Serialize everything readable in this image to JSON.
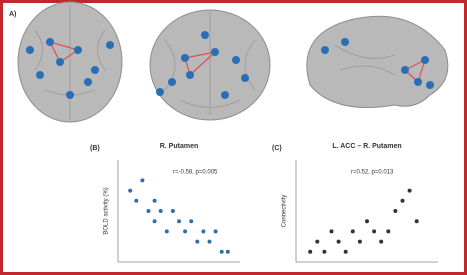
{
  "panel_label": "A)",
  "chart_data": [
    {
      "type": "scatter",
      "panel": "(B)",
      "title": "R. Putamen",
      "annotation": "r=-0.58, p=0.005",
      "y_label": "BOLD activity (%)",
      "x": [
        1,
        1.5,
        2,
        2.5,
        3,
        3,
        3.5,
        4,
        4.5,
        5,
        5.5,
        6,
        6.5,
        7,
        7.5,
        8,
        8.5,
        9
      ],
      "values": [
        7,
        6,
        8,
        5,
        6,
        4,
        5,
        3,
        5,
        4,
        3,
        4,
        2,
        3,
        2,
        3,
        1,
        1
      ],
      "color": "#2f6fa8",
      "xlim": [
        0,
        10
      ],
      "ylim": [
        0,
        10
      ]
    },
    {
      "type": "scatter",
      "panel": "(C)",
      "title": "L. ACC – R. Putamen",
      "annotation": "r=0.52, p=0.013",
      "y_label": "Connectivity",
      "x": [
        1,
        1.5,
        2,
        2.5,
        3,
        3.5,
        4,
        4.5,
        5,
        5.5,
        6,
        6.5,
        7,
        7.5,
        8,
        8.5
      ],
      "values": [
        1,
        2,
        1,
        3,
        2,
        1,
        3,
        2,
        4,
        3,
        2,
        3,
        5,
        6,
        7,
        4
      ],
      "color": "#333333",
      "xlim": [
        0,
        10
      ],
      "ylim": [
        0,
        10
      ]
    }
  ]
}
